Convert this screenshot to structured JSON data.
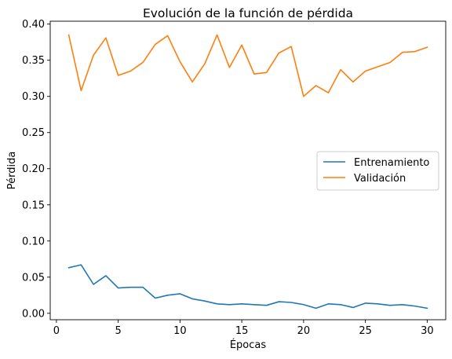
{
  "chart_data": {
    "type": "line",
    "title": "Evolución de la función de pérdida",
    "xlabel": "Épocas",
    "ylabel": "Pérdida",
    "xlim": [
      -0.5,
      31.5
    ],
    "ylim": [
      -0.0089,
      0.404
    ],
    "xticks": [
      0,
      5,
      10,
      15,
      20,
      25,
      30
    ],
    "yticks": [
      0.0,
      0.05,
      0.1,
      0.15,
      0.2,
      0.25,
      0.3,
      0.35,
      0.4
    ],
    "x": [
      1,
      2,
      3,
      4,
      5,
      6,
      7,
      8,
      9,
      10,
      11,
      12,
      13,
      14,
      15,
      16,
      17,
      18,
      19,
      20,
      21,
      22,
      23,
      24,
      25,
      26,
      27,
      28,
      29,
      30
    ],
    "series": [
      {
        "name": "Entrenamiento",
        "color": "#1f77b4",
        "values": [
          0.063,
          0.067,
          0.04,
          0.052,
          0.035,
          0.036,
          0.036,
          0.021,
          0.025,
          0.027,
          0.02,
          0.017,
          0.013,
          0.012,
          0.013,
          0.012,
          0.011,
          0.016,
          0.015,
          0.012,
          0.007,
          0.013,
          0.012,
          0.008,
          0.014,
          0.013,
          0.011,
          0.012,
          0.01,
          0.007
        ]
      },
      {
        "name": "Validación",
        "color": "#ff7f0e",
        "values": [
          0.385,
          0.308,
          0.357,
          0.381,
          0.329,
          0.335,
          0.347,
          0.372,
          0.384,
          0.348,
          0.32,
          0.345,
          0.385,
          0.34,
          0.371,
          0.331,
          0.333,
          0.36,
          0.369,
          0.3,
          0.315,
          0.305,
          0.337,
          0.32,
          0.335,
          0.341,
          0.347,
          0.361,
          0.362,
          0.368
        ]
      }
    ],
    "legend_position": "center-right",
    "grid": false
  }
}
